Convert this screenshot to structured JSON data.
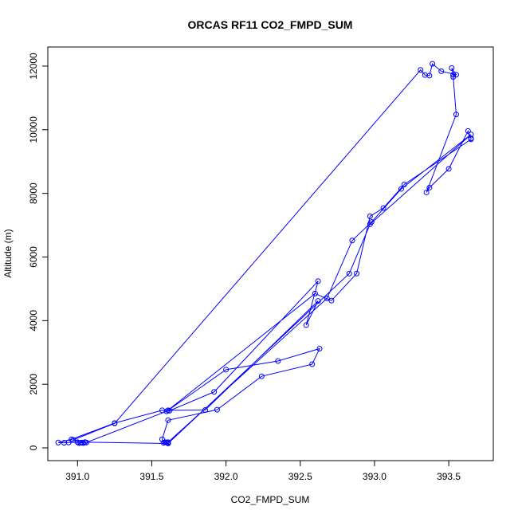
{
  "chart_data": {
    "type": "line",
    "title": "ORCAS RF11 CO2_FMPD_SUM",
    "xlabel": "CO2_FMPD_SUM",
    "ylabel": "Altitude (m)",
    "xlim": [
      390.8,
      393.8
    ],
    "ylim": [
      -400,
      12600
    ],
    "xticks": [
      391.0,
      391.5,
      392.0,
      392.5,
      393.0,
      393.5
    ],
    "xtick_labels": [
      "391.0",
      "391.5",
      "392.0",
      "392.5",
      "393.0",
      "393.5"
    ],
    "yticks": [
      0,
      2000,
      4000,
      6000,
      8000,
      10000,
      12000
    ],
    "ytick_labels": [
      "0",
      "2000",
      "4000",
      "6000",
      "8000",
      "10000",
      "12000"
    ],
    "grid": false,
    "legend": "none",
    "colors": {
      "series": "#0000ff",
      "axis": "#000000"
    },
    "series": [
      {
        "x": [
          391.61,
          391.6,
          391.59,
          391.58,
          391.57,
          391.61,
          391.94,
          392.24,
          392.58,
          392.63,
          392.35,
          392.0,
          391.61,
          391.86,
          392.62,
          392.54,
          392.62,
          391.92,
          391.62,
          391.57,
          391.25,
          390.96,
          390.87,
          390.91,
          390.94,
          391.0,
          391.01,
          391.02,
          391.03,
          391.04,
          391.05,
          391.06,
          391.6,
          392.6,
          392.71,
          392.88,
          392.97,
          393.06,
          393.2,
          393.65,
          393.65,
          393.63,
          393.5,
          393.37,
          393.35,
          393.55,
          393.53,
          393.53,
          393.52,
          393.55,
          393.45,
          393.39,
          393.37,
          393.34,
          393.31,
          391.25,
          390.97,
          391.05,
          391.61,
          392.83,
          392.97,
          393.65,
          393.18,
          392.98,
          392.85,
          392.68,
          391.61
        ],
        "y": [
          150,
          170,
          180,
          160,
          270,
          870,
          1200,
          2250,
          2630,
          3120,
          2730,
          2460,
          1180,
          1190,
          4620,
          3860,
          5240,
          1760,
          1170,
          1180,
          780,
          270,
          170,
          160,
          170,
          180,
          150,
          160,
          170,
          150,
          180,
          170,
          1150,
          4850,
          4630,
          5480,
          7280,
          7540,
          8280,
          9700,
          9730,
          9960,
          8770,
          8180,
          8030,
          10480,
          11660,
          11730,
          11940,
          11730,
          11840,
          12070,
          11700,
          11720,
          11880,
          770,
          250,
          180,
          140,
          5480,
          7030,
          9850,
          8140,
          7100,
          6520,
          4700,
          180
        ]
      }
    ]
  }
}
